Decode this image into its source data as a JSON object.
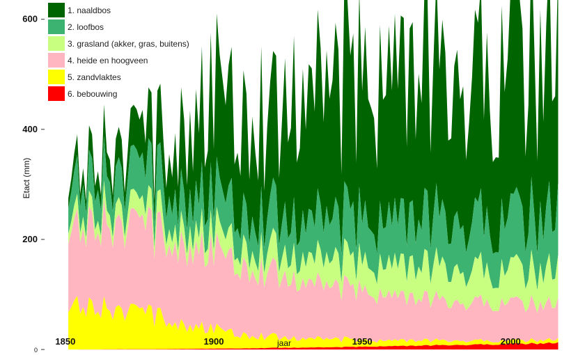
{
  "chart_data": {
    "type": "area",
    "stacked": true,
    "xlabel": "jaar",
    "ylabel": "Etact (mm)",
    "xlim": [
      1843,
      2018
    ],
    "ylim": [
      -10,
      635
    ],
    "x_ticks": [
      1850,
      1900,
      1950,
      2000
    ],
    "y_ticks": [
      0,
      200,
      400,
      600
    ],
    "grid": false,
    "legend_position": "top-left",
    "x_range": [
      1851,
      2016
    ],
    "series": [
      {
        "name": "1. naaldbos",
        "color": "#006400",
        "anchors": {
          "x": [
            1851,
            1855,
            1860,
            1865,
            1870,
            1875,
            1880,
            1885,
            1890,
            1895,
            1900,
            1905,
            1910,
            1915,
            1920,
            1925,
            1930,
            1935,
            1940,
            1945,
            1950,
            1955,
            1960,
            1965,
            1970,
            1975,
            1980,
            1985,
            1990,
            1995,
            2000,
            2005,
            2010,
            2016
          ],
          "values": [
            30,
            35,
            40,
            45,
            50,
            60,
            70,
            85,
            130,
            150,
            180,
            190,
            200,
            210,
            160,
            240,
            240,
            240,
            250,
            250,
            260,
            260,
            260,
            260,
            260,
            260,
            260,
            270,
            270,
            280,
            290,
            290,
            300,
            300
          ]
        }
      },
      {
        "name": "2. loofbos",
        "color": "#3CB371",
        "anchors": {
          "x": [
            1851,
            1860,
            1870,
            1880,
            1890,
            1900,
            1910,
            1920,
            1930,
            1940,
            1950,
            1960,
            1970,
            1980,
            1990,
            2000,
            2010,
            2016
          ],
          "values": [
            65,
            65,
            65,
            65,
            65,
            68,
            70,
            68,
            72,
            75,
            80,
            82,
            85,
            88,
            90,
            95,
            100,
            105
          ]
        }
      },
      {
        "name": "3. grasland (akker, gras, buitens)",
        "color": "#C8FF80",
        "anchors": {
          "x": [
            1851,
            1860,
            1870,
            1880,
            1890,
            1900,
            1910,
            1920,
            1930,
            1940,
            1950,
            1960,
            1970,
            1980,
            1990,
            2000,
            2010,
            2016
          ],
          "values": [
            25,
            25,
            28,
            30,
            32,
            35,
            38,
            40,
            45,
            48,
            52,
            55,
            58,
            60,
            60,
            60,
            62,
            62
          ]
        }
      },
      {
        "name": "4. heide en hoogveen",
        "color": "#FFB6C1",
        "anchors": {
          "x": [
            1851,
            1860,
            1870,
            1880,
            1890,
            1900,
            1910,
            1920,
            1930,
            1940,
            1950,
            1960,
            1970,
            1980,
            1990,
            2000,
            2010,
            2016
          ],
          "values": [
            150,
            155,
            155,
            150,
            145,
            140,
            130,
            115,
            105,
            95,
            90,
            80,
            75,
            70,
            70,
            68,
            65,
            65
          ]
        }
      },
      {
        "name": "5. zandvlaktes",
        "color": "#FFFF00",
        "anchors": {
          "x": [
            1851,
            1860,
            1870,
            1880,
            1890,
            1900,
            1910,
            1920,
            1930,
            1940,
            1950,
            1960,
            1970,
            1980,
            1990,
            2000,
            2010,
            2016
          ],
          "values": [
            95,
            80,
            70,
            60,
            45,
            35,
            27,
            20,
            17,
            15,
            12,
            10,
            9,
            8,
            7,
            6,
            6,
            6
          ]
        }
      },
      {
        "name": "6. bebouwing",
        "color": "#FF0000",
        "anchors": {
          "x": [
            1851,
            1880,
            1890,
            1900,
            1910,
            1920,
            1930,
            1940,
            1950,
            1960,
            1970,
            1980,
            1990,
            2000,
            2010,
            2016
          ],
          "values": [
            0,
            0.5,
            1,
            1.5,
            2,
            3,
            3.5,
            4,
            5,
            6,
            7,
            8,
            9,
            10,
            11,
            12
          ]
        }
      }
    ]
  }
}
